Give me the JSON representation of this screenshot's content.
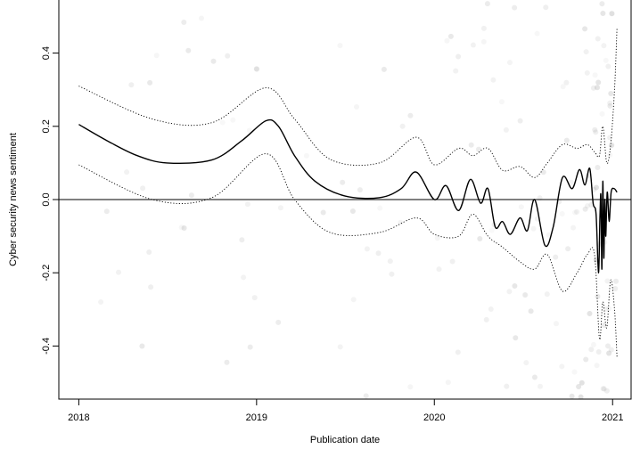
{
  "chart_data": {
    "type": "scatter",
    "title": "",
    "xlabel": "Publication date",
    "ylabel": "Cyber security news sentiment",
    "xlim": [
      "2017-11-21",
      "2021-02-08"
    ],
    "ylim": [
      -0.545,
      0.545
    ],
    "x_ticks": [
      "2018-01-01",
      "2019-01-01",
      "2020-01-01",
      "2021-01-01"
    ],
    "x_tick_labels": [
      "2018",
      "2019",
      "2020",
      "2021"
    ],
    "y_ticks": [
      -0.4,
      -0.2,
      0.0,
      0.2,
      0.4
    ],
    "y_tick_labels": [
      "-0.4",
      "-0.2",
      "0.0",
      "0.2",
      "0.4"
    ],
    "reference_line_y": 0,
    "grid": false,
    "legend": "none",
    "colors": {
      "points": "#8a8a8a",
      "fit": "#000000",
      "band": "#000000"
    },
    "density_segments": [
      {
        "from": "2018-01-01",
        "to": "2019-06-01",
        "weight": 1
      },
      {
        "from": "2019-06-01",
        "to": "2020-01-01",
        "weight": 1.3
      },
      {
        "from": "2020-01-01",
        "to": "2020-06-01",
        "weight": 2.4
      },
      {
        "from": "2020-06-01",
        "to": "2020-10-01",
        "weight": 3.6
      },
      {
        "from": "2020-10-01",
        "to": "2020-11-20",
        "weight": 6
      },
      {
        "from": "2020-11-20",
        "to": "2020-12-31",
        "weight": 16
      },
      {
        "from": "2020-12-31",
        "to": "2021-01-10",
        "weight": 3
      }
    ],
    "fit": {
      "x": [
        "2018-01-01",
        "2018-03-01",
        "2018-05-01",
        "2018-07-01",
        "2018-10-01",
        "2018-12-01",
        "2019-01-20",
        "2019-02-15",
        "2019-03-20",
        "2019-05-01",
        "2019-07-01",
        "2019-09-10",
        "2019-10-25",
        "2019-11-25",
        "2020-01-01",
        "2020-01-25",
        "2020-02-20",
        "2020-03-15",
        "2020-04-05",
        "2020-04-20",
        "2020-05-05",
        "2020-05-20",
        "2020-06-05",
        "2020-06-25",
        "2020-07-10",
        "2020-07-25",
        "2020-08-15",
        "2020-09-01",
        "2020-09-20",
        "2020-10-10",
        "2020-10-25",
        "2020-11-05",
        "2020-11-15",
        "2020-11-22",
        "2020-11-28",
        "2020-12-03",
        "2020-12-06",
        "2020-12-08",
        "2020-12-10",
        "2020-12-12",
        "2020-12-14",
        "2020-12-16",
        "2020-12-18",
        "2020-12-21",
        "2020-12-25",
        "2020-12-29",
        "2021-01-04",
        "2021-01-10"
      ],
      "y": [
        0.205,
        0.16,
        0.12,
        0.1,
        0.108,
        0.16,
        0.215,
        0.2,
        0.12,
        0.05,
        0.01,
        0.005,
        0.03,
        0.075,
        0.0,
        0.038,
        -0.03,
        0.055,
        -0.01,
        0.03,
        -0.075,
        -0.06,
        -0.095,
        -0.05,
        -0.085,
        0.0,
        -0.125,
        -0.075,
        0.06,
        0.03,
        0.082,
        0.04,
        0.085,
        -0.01,
        -0.04,
        -0.2,
        -0.05,
        0.01,
        -0.19,
        0.05,
        -0.16,
        0.0,
        -0.1,
        0.02,
        -0.06,
        0.02,
        0.03,
        0.02
      ]
    },
    "band_upper": {
      "x": [
        "2018-01-01",
        "2018-06-01",
        "2018-10-01",
        "2019-01-20",
        "2019-03-20",
        "2019-06-01",
        "2019-09-10",
        "2019-11-25",
        "2020-01-01",
        "2020-02-20",
        "2020-03-20",
        "2020-04-20",
        "2020-05-20",
        "2020-06-25",
        "2020-07-25",
        "2020-08-20",
        "2020-09-20",
        "2020-10-20",
        "2020-11-10",
        "2020-11-25",
        "2020-12-05",
        "2020-12-12",
        "2020-12-20",
        "2020-12-28",
        "2021-01-05",
        "2021-01-10"
      ],
      "y": [
        0.31,
        0.22,
        0.21,
        0.305,
        0.22,
        0.11,
        0.1,
        0.17,
        0.095,
        0.14,
        0.12,
        0.14,
        0.08,
        0.09,
        0.06,
        0.1,
        0.15,
        0.14,
        0.15,
        0.13,
        0.12,
        0.2,
        0.1,
        0.15,
        0.3,
        0.47
      ]
    },
    "band_lower": {
      "x": [
        "2018-01-01",
        "2018-06-01",
        "2018-10-01",
        "2019-01-20",
        "2019-03-20",
        "2019-06-01",
        "2019-09-10",
        "2019-11-25",
        "2020-01-01",
        "2020-02-20",
        "2020-03-20",
        "2020-04-20",
        "2020-05-20",
        "2020-06-25",
        "2020-07-25",
        "2020-08-20",
        "2020-09-20",
        "2020-10-20",
        "2020-11-10",
        "2020-11-25",
        "2020-12-05",
        "2020-12-12",
        "2020-12-20",
        "2020-12-28",
        "2021-01-05",
        "2021-01-10"
      ],
      "y": [
        0.095,
        0.0,
        0.005,
        0.125,
        0.0,
        -0.09,
        -0.09,
        -0.05,
        -0.095,
        -0.1,
        -0.04,
        -0.1,
        -0.13,
        -0.17,
        -0.19,
        -0.15,
        -0.25,
        -0.2,
        -0.15,
        -0.15,
        -0.38,
        -0.28,
        -0.35,
        -0.22,
        -0.3,
        -0.43
      ]
    }
  }
}
